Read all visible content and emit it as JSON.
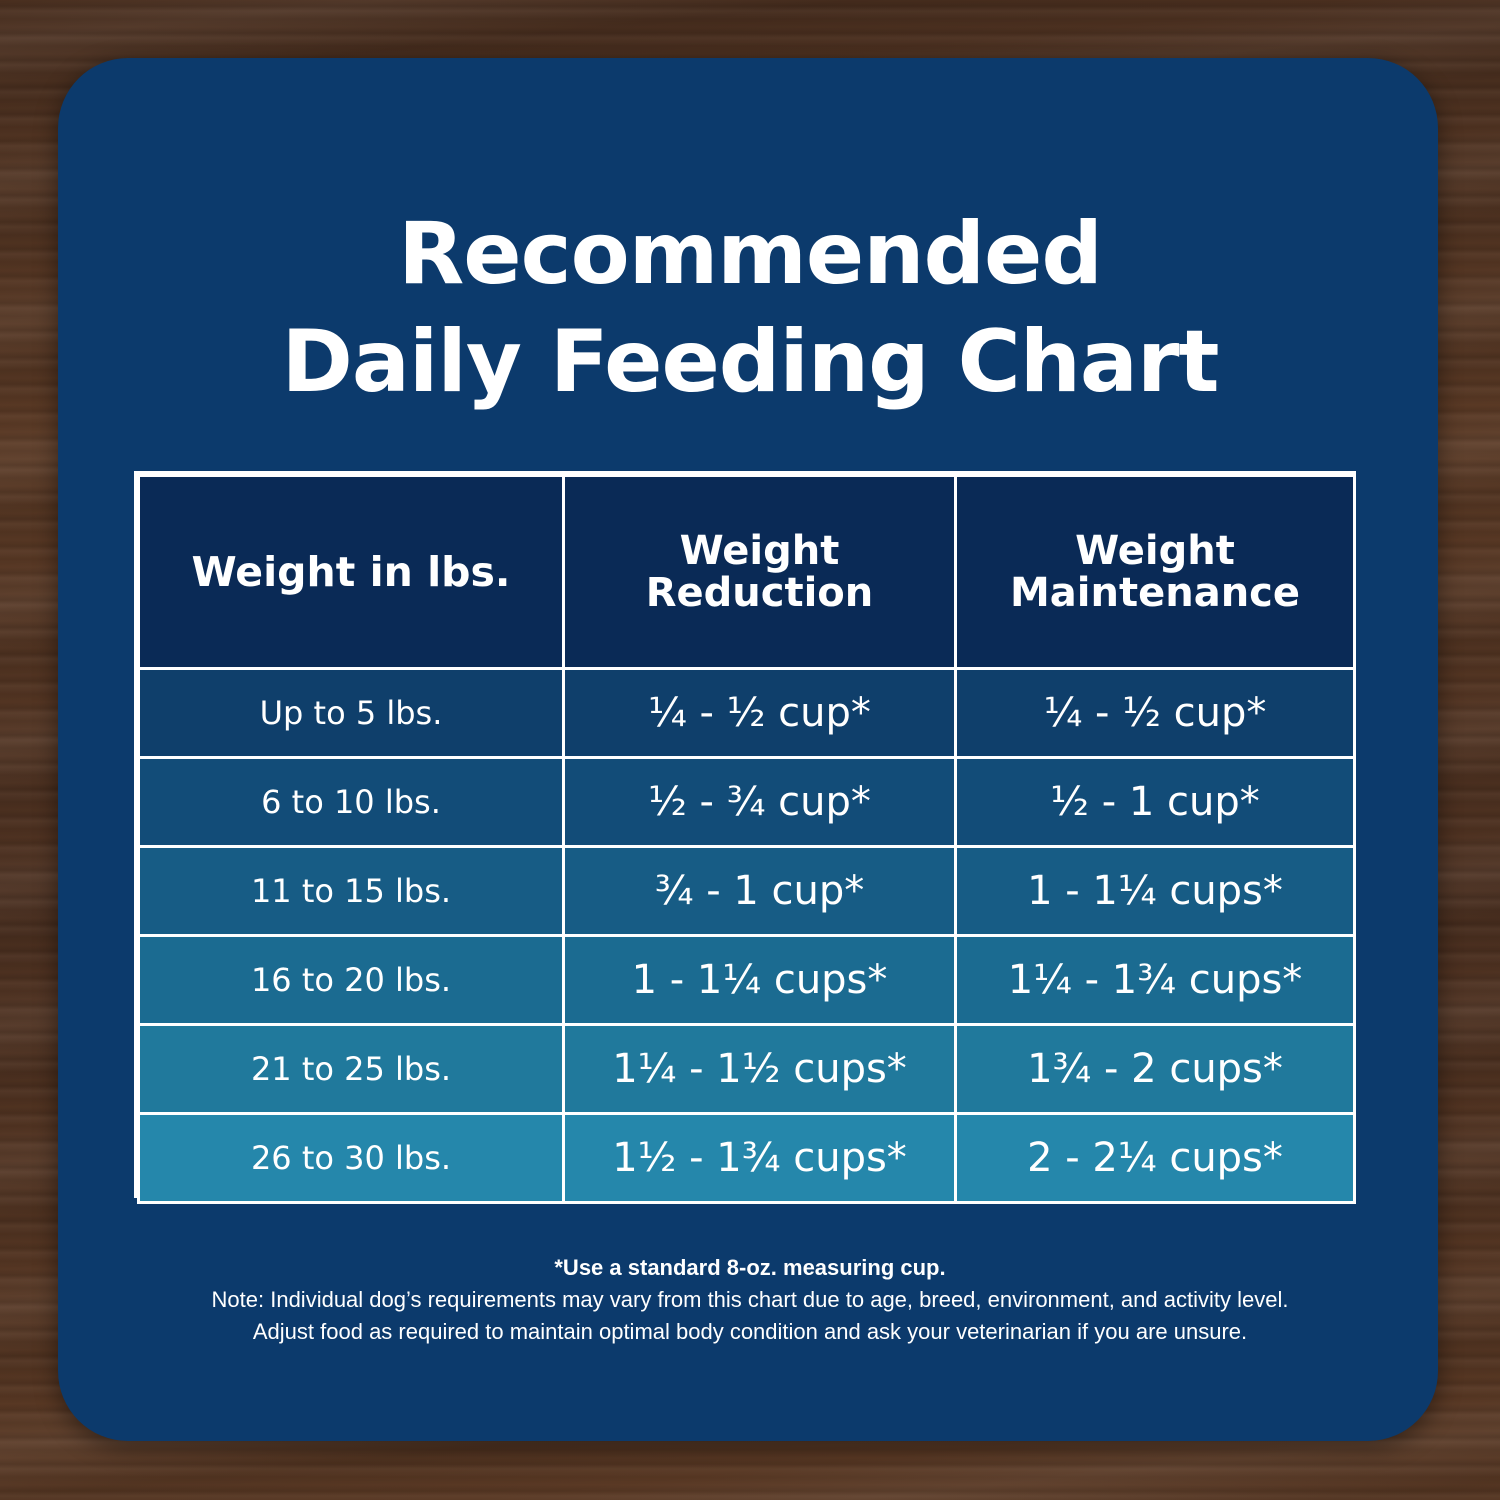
{
  "title_line1": "Recommended",
  "title_line2": "Daily Feeding Chart",
  "colors": {
    "card_bg": "#0c3a6c",
    "header_bg": "#0a2a56",
    "row_bgs": [
      "#0f3f6b",
      "#124c78",
      "#175c85",
      "#1b6b91",
      "#20799c",
      "#2587ab"
    ],
    "border": "#ffffff",
    "text": "#ffffff"
  },
  "table": {
    "headers": {
      "weight": "Weight in lbs.",
      "reduction_line1": "Weight",
      "reduction_line2": "Reduction",
      "maintenance_line1": "Weight",
      "maintenance_line2": "Maintenance"
    },
    "rows": [
      {
        "weight": "Up to 5 lbs.",
        "reduction": "¼ - ½ cup*",
        "maintenance": "¼ - ½ cup*"
      },
      {
        "weight": "6 to 10 lbs.",
        "reduction": "½ - ¾ cup*",
        "maintenance": "½ - 1 cup*"
      },
      {
        "weight": "11 to 15 lbs.",
        "reduction": "¾ - 1 cup*",
        "maintenance": "1 - 1¼ cups*"
      },
      {
        "weight": "16 to 20 lbs.",
        "reduction": "1 - 1¼ cups*",
        "maintenance": "1¼ - 1¾ cups*"
      },
      {
        "weight": "21 to 25 lbs.",
        "reduction": "1¼ - 1½ cups*",
        "maintenance": "1¾ - 2 cups*"
      },
      {
        "weight": "26 to 30 lbs.",
        "reduction": "1½ - 1¾ cups*",
        "maintenance": "2 - 2¼ cups*"
      }
    ]
  },
  "notes": {
    "footnote": "*Use a standard 8-oz. measuring cup.",
    "note_line1": "Note: Individual dog’s requirements may vary from this chart due to age, breed, environment, and activity level.",
    "note_line2": "Adjust food as required to maintain optimal body condition and ask your veterinarian if you are unsure."
  }
}
